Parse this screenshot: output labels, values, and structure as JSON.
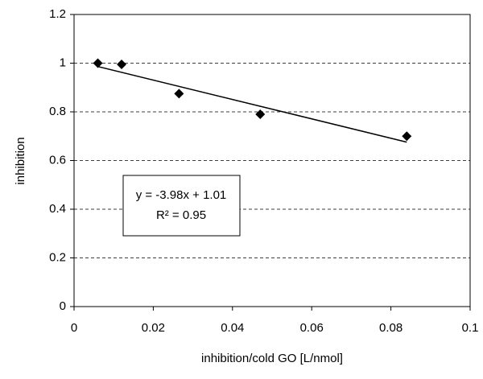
{
  "chart_data": {
    "type": "scatter",
    "x_label": "inhibition/cold GO [L/nmol]",
    "y_label": "inhibition",
    "series": [
      {
        "name": "inhibition",
        "color": "#000000",
        "x": [
          0.006,
          0.012,
          0.0265,
          0.047,
          0.084
        ],
        "values": [
          1.0,
          0.995,
          0.875,
          0.79,
          0.7
        ]
      }
    ],
    "trendline": {
      "slope": -3.98,
      "intercept": 1.01
    },
    "annotations": [
      "y = -3.98x + 1.01",
      "R² = 0.95"
    ],
    "xlim": [
      0,
      0.1
    ],
    "xticks": [
      0,
      0.02,
      0.04,
      0.06,
      0.08,
      0.1
    ],
    "ylim": [
      0,
      1.2
    ],
    "yticks": [
      0,
      0.2,
      0.4,
      0.6,
      0.8,
      1,
      1.2
    ],
    "grid": true
  }
}
